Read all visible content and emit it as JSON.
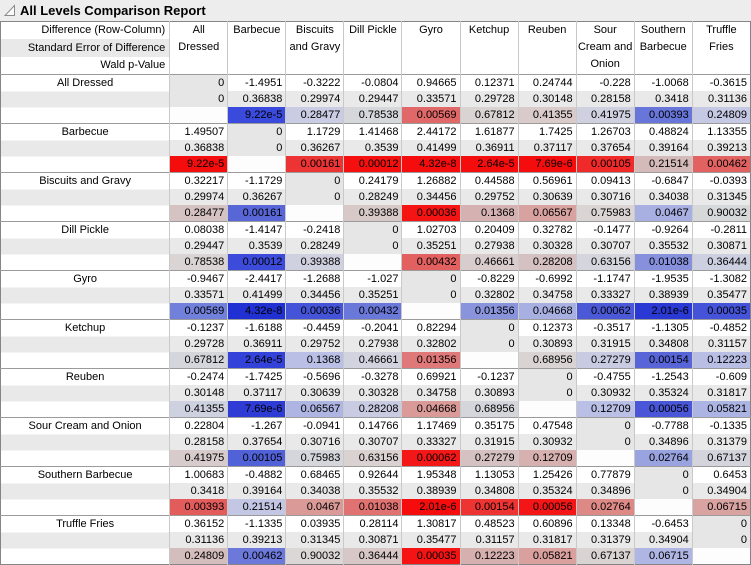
{
  "title": "All Levels Comparison Report",
  "corner_header": [
    "Difference (Row-Column)",
    "Standard Error of Difference",
    "Wald p-Value"
  ],
  "columns": [
    "All Dressed",
    "Barbecue",
    "Biscuits and Gravy",
    "Dill Pickle",
    "Gyro",
    "Ketchup",
    "Reuben",
    "Sour Cream and Onion",
    "Southern Barbecue",
    "Truffle Fries"
  ],
  "colors": {
    "stripe": "#e9e9e9",
    "diagonal": "#e6e6e6",
    "grid": "#c9c9c9",
    "group_border": "#9b9b9b",
    "significant_positive": "#f50d0d",
    "significant_negative": "#2130d3"
  },
  "rows": [
    {
      "label": "All Dressed",
      "diff": [
        "0",
        "-1.4951",
        "-0.3222",
        "-0.0804",
        "0.94665",
        "0.12371",
        "0.24744",
        "-0.228",
        "-1.0068",
        "-0.3615"
      ],
      "se": [
        "0",
        "0.36838",
        "0.29974",
        "0.29447",
        "0.33571",
        "0.29728",
        "0.30148",
        "0.28158",
        "0.3418",
        "0.31136"
      ],
      "p": [
        "",
        "9.22e-5",
        "0.28477",
        "0.78538",
        "0.00569",
        "0.67812",
        "0.41355",
        "0.41975",
        "0.00393",
        "0.24809"
      ],
      "p_colors": [
        null,
        "#3a4adc",
        "#c9cce2",
        "#d6d7db",
        "#e16868",
        "#d9d3d2",
        "#d8cbca",
        "#cfd1e0",
        "#6876da",
        "#c6c9e3"
      ]
    },
    {
      "label": "Barbecue",
      "diff": [
        "1.49507",
        "0",
        "1.1729",
        "1.41468",
        "2.44172",
        "1.61877",
        "1.7425",
        "1.26703",
        "0.48824",
        "1.13355"
      ],
      "se": [
        "0.36838",
        "0",
        "0.36267",
        "0.3539",
        "0.41499",
        "0.36911",
        "0.37117",
        "0.37654",
        "0.39164",
        "0.39213"
      ],
      "p": [
        "9.22e-5",
        "",
        "0.00161",
        "0.00012",
        "4.32e-8",
        "2.64e-5",
        "7.69e-6",
        "0.00105",
        "0.21514",
        "0.00462"
      ],
      "p_colors": [
        "#f50d0d",
        null,
        "#ed3434",
        "#f50f0f",
        "#f50d0d",
        "#f50d0d",
        "#f50d0d",
        "#f02929",
        "#d4bbba",
        "#e26262"
      ]
    },
    {
      "label": "Biscuits and Gravy",
      "diff": [
        "0.32217",
        "-1.1729",
        "0",
        "0.24179",
        "1.26882",
        "0.44588",
        "0.56961",
        "0.09413",
        "-0.6847",
        "-0.0393"
      ],
      "se": [
        "0.29974",
        "0.36267",
        "0",
        "0.28249",
        "0.34456",
        "0.29752",
        "0.30639",
        "0.30716",
        "0.34038",
        "0.31345"
      ],
      "p": [
        "0.28477",
        "0.00161",
        "",
        "0.39388",
        "0.00036",
        "0.1368",
        "0.06567",
        "0.75983",
        "0.0467",
        "0.90032"
      ],
      "p_colors": [
        "#d5c2c2",
        "#5866d8",
        null,
        "#d7c9c8",
        "#f51313",
        "#d5b2b1",
        "#d8a2a0",
        "#dad4d4",
        "#a8b0e2",
        "#d7d8da"
      ]
    },
    {
      "label": "Dill Pickle",
      "diff": [
        "0.08038",
        "-1.4147",
        "-0.2418",
        "0",
        "1.02703",
        "0.20409",
        "0.32782",
        "-0.1477",
        "-0.9264",
        "-0.2811"
      ],
      "se": [
        "0.29447",
        "0.3539",
        "0.28249",
        "0",
        "0.35251",
        "0.27938",
        "0.30328",
        "0.30707",
        "0.35532",
        "0.30871"
      ],
      "p": [
        "0.78538",
        "0.00012",
        "0.39388",
        "",
        "0.00432",
        "0.46661",
        "0.28208",
        "0.63156",
        "0.01038",
        "0.36444"
      ],
      "p_colors": [
        "#dad5d4",
        "#3c4bda",
        "#cfd1e0",
        null,
        "#e26060",
        "#d8cccc",
        "#d5c1c1",
        "#d4d5dd",
        "#8690dc",
        "#cdd0e1"
      ]
    },
    {
      "label": "Gyro",
      "diff": [
        "-0.9467",
        "-2.4417",
        "-1.2688",
        "-1.027",
        "0",
        "-0.8229",
        "-0.6992",
        "-1.1747",
        "-1.9535",
        "-1.3082"
      ],
      "se": [
        "0.33571",
        "0.41499",
        "0.34456",
        "0.35251",
        "0",
        "0.32802",
        "0.34758",
        "0.33327",
        "0.38939",
        "0.35477"
      ],
      "p": [
        "0.00569",
        "4.32e-8",
        "0.00036",
        "0.00432",
        "",
        "0.01356",
        "0.04668",
        "0.00062",
        "2.01e-6",
        "0.00035"
      ],
      "p_colors": [
        "#7180db",
        "#2130d3",
        "#4453d8",
        "#6a78da",
        null,
        "#8a94dd",
        "#a8b0e2",
        "#4b59d7",
        "#2a38d4",
        "#4453d8"
      ]
    },
    {
      "label": "Ketchup",
      "diff": [
        "-0.1237",
        "-1.6188",
        "-0.4459",
        "-0.2041",
        "0.82294",
        "0",
        "0.12373",
        "-0.3517",
        "-1.1305",
        "-0.4852"
      ],
      "se": [
        "0.29728",
        "0.36911",
        "0.29752",
        "0.27938",
        "0.32802",
        "0",
        "0.30893",
        "0.31915",
        "0.34808",
        "0.31157"
      ],
      "p": [
        "0.67812",
        "2.64e-5",
        "0.1368",
        "0.46661",
        "0.01356",
        "",
        "0.68956",
        "0.27279",
        "0.00154",
        "0.12223"
      ],
      "p_colors": [
        "#d5d6dc",
        "#3342d8",
        "#bac0e5",
        "#d1d3df",
        "#df7878",
        null,
        "#d9d3d3",
        "#c8cbe2",
        "#5765d8",
        "#b9bee5"
      ]
    },
    {
      "label": "Reuben",
      "diff": [
        "-0.2474",
        "-1.7425",
        "-0.5696",
        "-0.3278",
        "0.69921",
        "-0.1237",
        "0",
        "-0.4755",
        "-1.2543",
        "-0.609"
      ],
      "se": [
        "0.30148",
        "0.37117",
        "0.30639",
        "0.30328",
        "0.34758",
        "0.30893",
        "0",
        "0.30932",
        "0.35324",
        "0.31817"
      ],
      "p": [
        "0.41355",
        "7.69e-6",
        "0.06567",
        "0.28208",
        "0.04668",
        "0.68956",
        "",
        "0.12709",
        "0.00056",
        "0.05821"
      ],
      "p_colors": [
        "#ced1e0",
        "#2e3cd5",
        "#aeb5e3",
        "#c9cbe2",
        "#da9a97",
        "#d5d6dc",
        null,
        "#b9bfe5",
        "#4956d7",
        "#acb4e3"
      ]
    },
    {
      "label": "Sour Cream and Onion",
      "diff": [
        "0.22804",
        "-1.267",
        "-0.0941",
        "0.14766",
        "1.17469",
        "0.35175",
        "0.47548",
        "0",
        "-0.7788",
        "-0.1335"
      ],
      "se": [
        "0.28158",
        "0.37654",
        "0.30716",
        "0.30707",
        "0.33327",
        "0.31915",
        "0.30932",
        "0",
        "0.34896",
        "0.31379"
      ],
      "p": [
        "0.41975",
        "0.00105",
        "0.75983",
        "0.63156",
        "0.00062",
        "0.27279",
        "0.12709",
        "",
        "0.02764",
        "0.67137"
      ],
      "p_colors": [
        "#d8cbcb",
        "#5161d8",
        "#d5d6db",
        "#d9d2d1",
        "#f41717",
        "#d5c1c1",
        "#d6b1b0",
        null,
        "#99a3df",
        "#d4d5dc"
      ]
    },
    {
      "label": "Southern Barbecue",
      "diff": [
        "1.00683",
        "-0.4882",
        "0.68465",
        "0.92644",
        "1.95348",
        "1.13053",
        "1.25426",
        "0.77879",
        "0",
        "0.6453"
      ],
      "se": [
        "0.3418",
        "0.39164",
        "0.34038",
        "0.35532",
        "0.38939",
        "0.34808",
        "0.35324",
        "0.34896",
        "0",
        "0.34904"
      ],
      "p": [
        "0.00393",
        "0.21514",
        "0.0467",
        "0.01038",
        "2.01e-6",
        "0.00154",
        "0.00056",
        "0.02764",
        "",
        "0.06715"
      ],
      "p_colors": [
        "#e35c5c",
        "#c3c7e4",
        "#da9a97",
        "#e07272",
        "#f50d0d",
        "#ee3333",
        "#f41616",
        "#dd8a87",
        null,
        "#d8a3a1"
      ]
    },
    {
      "label": "Truffle Fries",
      "diff": [
        "0.36152",
        "-1.1335",
        "0.03935",
        "0.28114",
        "1.30817",
        "0.48523",
        "0.60896",
        "0.13348",
        "-0.6453",
        "0"
      ],
      "se": [
        "0.31136",
        "0.39213",
        "0.31345",
        "0.30871",
        "0.35477",
        "0.31157",
        "0.31817",
        "0.31379",
        "0.34904",
        "0"
      ],
      "p": [
        "0.24809",
        "0.00462",
        "0.90032",
        "0.36444",
        "0.00035",
        "0.12223",
        "0.05821",
        "0.67137",
        "0.06715",
        ""
      ],
      "p_colors": [
        "#d4bebd",
        "#6c79da",
        "#dad7d6",
        "#d7c8c7",
        "#f51313",
        "#d6b0af",
        "#d9a09d",
        "#d9d3d2",
        "#afb6e3",
        null
      ]
    }
  ]
}
